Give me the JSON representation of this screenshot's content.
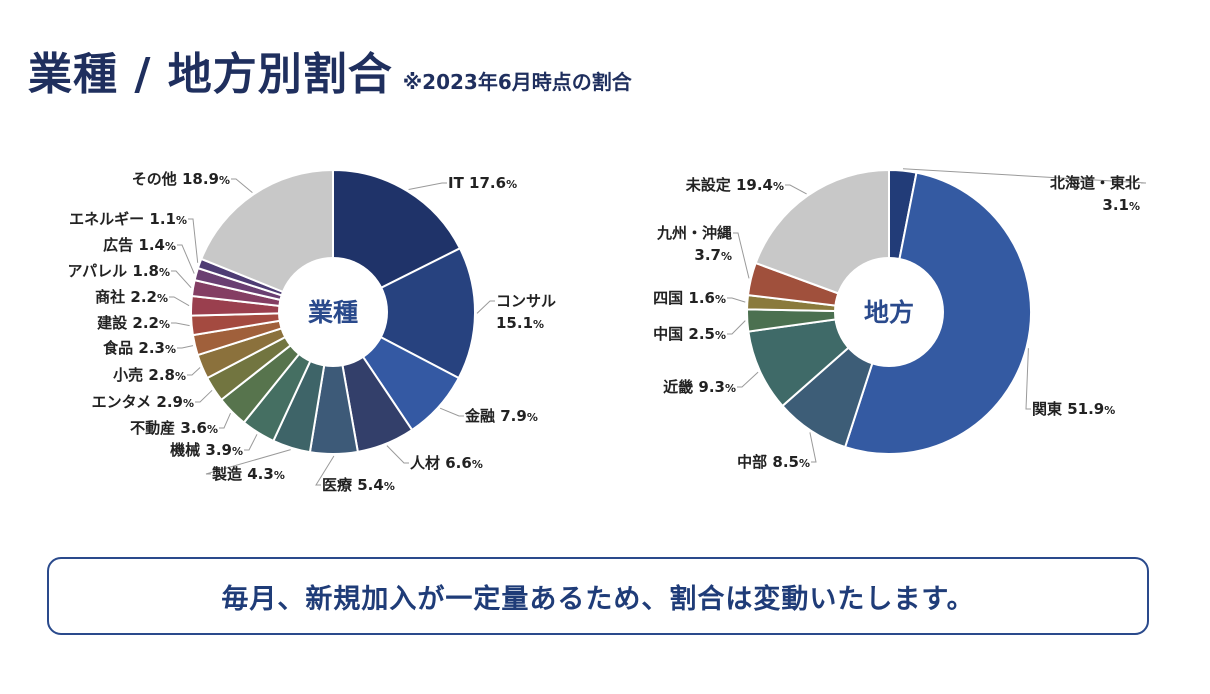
{
  "title": "業種 / 地方別割合",
  "note": "※2023年6月時点の割合",
  "footer": "毎月、新規加入が一定量あるため、割合は変動いたします。",
  "chart_data": [
    {
      "type": "pie",
      "title": "業種",
      "unit": "%",
      "slices": [
        {
          "label": "IT",
          "value": 17.6,
          "color": "#1f3369"
        },
        {
          "label": "コンサル",
          "value": 15.1,
          "color": "#27427f"
        },
        {
          "label": "金融",
          "value": 7.9,
          "color": "#3459a3"
        },
        {
          "label": "人材",
          "value": 6.6,
          "color": "#333f6a"
        },
        {
          "label": "医療",
          "value": 5.4,
          "color": "#3d5a78"
        },
        {
          "label": "製造",
          "value": 4.3,
          "color": "#3e6468"
        },
        {
          "label": "機械",
          "value": 3.9,
          "color": "#456f62"
        },
        {
          "label": "不動産",
          "value": 3.6,
          "color": "#57744d"
        },
        {
          "label": "エンタメ",
          "value": 2.9,
          "color": "#727540"
        },
        {
          "label": "小売",
          "value": 2.8,
          "color": "#8b713c"
        },
        {
          "label": "食品",
          "value": 2.3,
          "color": "#a0603b"
        },
        {
          "label": "建設",
          "value": 2.2,
          "color": "#a44a40"
        },
        {
          "label": "商社",
          "value": 2.2,
          "color": "#9a3f4e"
        },
        {
          "label": "アパレル",
          "value": 1.8,
          "color": "#843e63"
        },
        {
          "label": "広告",
          "value": 1.4,
          "color": "#6a3f72"
        },
        {
          "label": "エネルギー",
          "value": 1.1,
          "color": "#4e3c74"
        },
        {
          "label": "その他",
          "value": 18.9,
          "color": "#c8c8c8"
        }
      ]
    },
    {
      "type": "pie",
      "title": "地方",
      "unit": "%",
      "slices": [
        {
          "label": "北海道・東北",
          "value": 3.1,
          "color": "#223c78"
        },
        {
          "label": "関東",
          "value": 51.9,
          "color": "#345aa2"
        },
        {
          "label": "中部",
          "value": 8.5,
          "color": "#3d5d77"
        },
        {
          "label": "近畿",
          "value": 9.3,
          "color": "#3f6a68"
        },
        {
          "label": "中国",
          "value": 2.5,
          "color": "#4b7050"
        },
        {
          "label": "四国",
          "value": 1.6,
          "color": "#8a7a3c"
        },
        {
          "label": "九州・沖縄",
          "value": 3.7,
          "color": "#a0503c"
        },
        {
          "label": "未設定",
          "value": 19.4,
          "color": "#c8c8c8"
        }
      ]
    }
  ]
}
